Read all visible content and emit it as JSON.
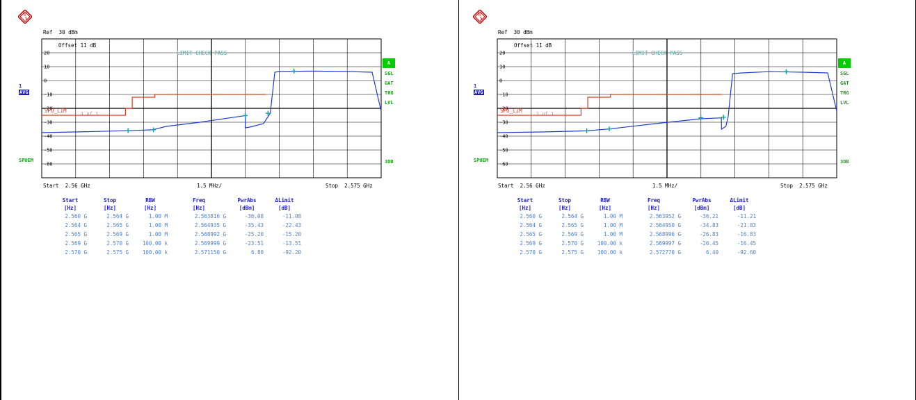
{
  "colors": {
    "trace": "#1e3cd2",
    "limit_line": "#d23c1e",
    "grid": "#000000",
    "badge_green": "#00cc00",
    "side_green": "#1a9c1a",
    "table_header": "#1a1acc",
    "table_value": "#4a7fd0",
    "marker": "#0aa0a0"
  },
  "panels": [
    {
      "ref": "Ref  30 dBm",
      "offset": "Offset  11 dB",
      "limit_check": "LIMIT CHECK  PASS",
      "limit_name": "SPU_LIM",
      "sweep_count": "1 of  1",
      "badge_1": "1",
      "badge_avg": "AVG",
      "spuem": "SPUEM",
      "badge_a": "A",
      "sgl": "SGL",
      "gat": "GAT",
      "trg": "TRG",
      "lvl": "LVL",
      "threedb": "3DB",
      "start": "Start  2.56 GHz",
      "div": "1.5 MHz/",
      "stop": "Stop  2.575 GHz",
      "headers": [
        "Start",
        "Stop",
        "RBW",
        "Freq",
        "PwrAbs",
        "ΔLimit"
      ],
      "units": [
        "[Hz]",
        "[Hz]",
        "[Hz]",
        "[Hz]",
        "[dBm]",
        "[dB]"
      ],
      "rows": [
        [
          "2.560 G",
          "2.564 G",
          "1.00 M",
          "2.563816 G",
          "-36.08",
          "-11.08"
        ],
        [
          "2.564 G",
          "2.565 G",
          "1.00 M",
          "2.564935 G",
          "-35.43",
          "-22.43"
        ],
        [
          "2.565 G",
          "2.569 G",
          "1.00 M",
          "2.568992 G",
          "-25.20",
          "-15.20"
        ],
        [
          "2.569 G",
          "2.570 G",
          "100.00 k",
          "2.569999 G",
          "-23.51",
          "-13.51"
        ],
        [
          "2.570 G",
          "2.575 G",
          "100.00 k",
          "2.571150 G",
          "6.80",
          "-92.20"
        ]
      ]
    },
    {
      "ref": "Ref  30 dBm",
      "offset": "Offset  11 dB",
      "limit_check": "LIMIT CHECK  PASS",
      "limit_name": "SPU_LIM",
      "sweep_count": "1 of  1",
      "badge_1": "1",
      "badge_avg": "AVG",
      "spuem": "SPUEM",
      "badge_a": "A",
      "sgl": "SGL",
      "gat": "GAT",
      "trg": "TRG",
      "lvl": "LVL",
      "threedb": "3DB",
      "start": "Start  2.56 GHz",
      "div": "1.5 MHz/",
      "stop": "Stop  2.575 GHz",
      "headers": [
        "Start",
        "Stop",
        "RBW",
        "Freq",
        "PwrAbs",
        "ΔLimit"
      ],
      "units": [
        "[Hz]",
        "[Hz]",
        "[Hz]",
        "[Hz]",
        "[dBm]",
        "[dB]"
      ],
      "rows": [
        [
          "2.560 G",
          "2.564 G",
          "1.00 M",
          "2.563952 G",
          "-36.21",
          "-11.21"
        ],
        [
          "2.564 G",
          "2.565 G",
          "1.00 M",
          "2.564950 G",
          "-34.83",
          "-21.83"
        ],
        [
          "2.565 G",
          "2.569 G",
          "1.00 M",
          "2.568996 G",
          "-26.83",
          "-16.83"
        ],
        [
          "2.569 G",
          "2.570 G",
          "100.00 k",
          "2.569997 G",
          "-26.45",
          "-16.45"
        ],
        [
          "2.570 G",
          "2.575 G",
          "100.00 k",
          "2.572770 G",
          "6.40",
          "-92.60"
        ]
      ]
    }
  ],
  "chart_data": [
    {
      "type": "line",
      "title": "",
      "xlabel": "",
      "ylabel": "",
      "xlim": [
        2.56,
        2.575
      ],
      "ylim": [
        -70,
        30
      ],
      "y_ticks": [
        20,
        10,
        0,
        -10,
        -20,
        -30,
        -40,
        -50,
        -60
      ],
      "grid": true,
      "series": [
        {
          "x": [
            2.56,
            2.562,
            2.5638,
            2.5649,
            2.5655,
            2.567,
            2.569,
            2.56899,
            2.5692,
            2.5698,
            2.5701,
            2.5703,
            2.5705,
            2.572,
            2.5735,
            2.5746,
            2.575
          ],
          "y": [
            -37.5,
            -36.8,
            -36.08,
            -35.43,
            -33,
            -30,
            -25.2,
            -34,
            -33.5,
            -31,
            -23.51,
            6,
            6.5,
            6.8,
            6.5,
            6,
            -22
          ]
        },
        {
          "x": [
            2.56,
            2.5637,
            2.5637,
            2.564,
            2.564,
            2.565,
            2.565,
            2.5699
          ],
          "y": [
            -25,
            -25,
            -20,
            -20,
            -12,
            -12,
            -10,
            -10
          ]
        }
      ],
      "markers": [
        {
          "x": 2.563816,
          "y": -36.08
        },
        {
          "x": 2.564935,
          "y": -35.43
        },
        {
          "x": 2.568992,
          "y": -25.2
        },
        {
          "x": 2.569999,
          "y": -23.51
        },
        {
          "x": 2.57115,
          "y": 6.8
        }
      ]
    },
    {
      "type": "line",
      "title": "",
      "xlabel": "",
      "ylabel": "",
      "xlim": [
        2.56,
        2.575
      ],
      "ylim": [
        -70,
        30
      ],
      "y_ticks": [
        20,
        10,
        0,
        -10,
        -20,
        -30,
        -40,
        -50,
        -60
      ],
      "grid": true,
      "series": [
        {
          "x": [
            2.56,
            2.562,
            2.56395,
            2.56495,
            2.567,
            2.569,
            2.5699,
            2.56991,
            2.5701,
            2.5702,
            2.5704,
            2.5708,
            2.572,
            2.5735,
            2.5746,
            2.575
          ],
          "y": [
            -37.5,
            -37,
            -36.21,
            -34.83,
            -31,
            -27.5,
            -26.83,
            -35,
            -33,
            -26.45,
            5,
            5.5,
            6.4,
            6,
            5.5,
            -22
          ]
        },
        {
          "x": [
            2.56,
            2.5637,
            2.5637,
            2.564,
            2.564,
            2.565,
            2.565,
            2.5699
          ],
          "y": [
            -25,
            -25,
            -20,
            -20,
            -12,
            -12,
            -10,
            -10
          ]
        }
      ],
      "markers": [
        {
          "x": 2.563952,
          "y": -36.21
        },
        {
          "x": 2.56495,
          "y": -34.83
        },
        {
          "x": 2.568996,
          "y": -26.83
        },
        {
          "x": 2.569997,
          "y": -26.45
        },
        {
          "x": 2.57277,
          "y": 6.4
        }
      ]
    }
  ]
}
